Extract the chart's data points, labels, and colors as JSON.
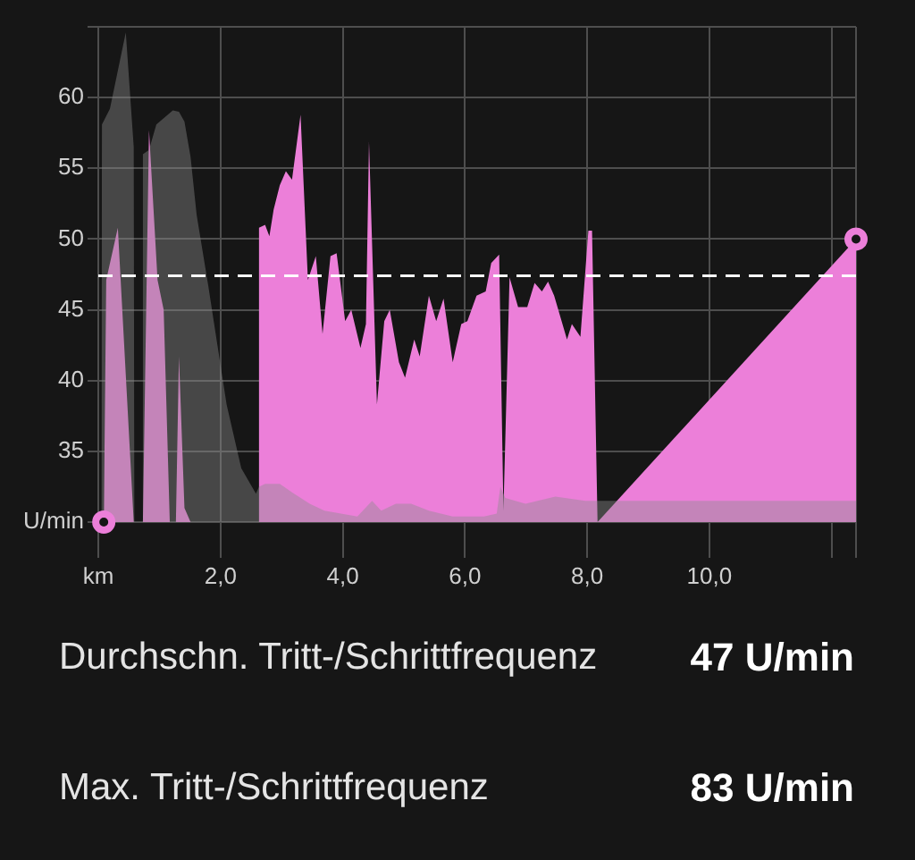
{
  "chart_data": {
    "type": "area",
    "xlim": [
      0,
      12.4
    ],
    "xticks": [
      {
        "value": 0,
        "label": "km"
      },
      {
        "value": 2,
        "label": "2,0"
      },
      {
        "value": 4,
        "label": "4,0"
      },
      {
        "value": 6,
        "label": "6,0"
      },
      {
        "value": 8,
        "label": "8,0"
      },
      {
        "value": 10,
        "label": "10,0"
      },
      {
        "value": 12,
        "label": null
      },
      {
        "value": 12.4,
        "label": null
      }
    ],
    "ylim": [
      30,
      65
    ],
    "yticks": [
      {
        "value": 30,
        "label": "U/min"
      },
      35,
      40,
      45,
      50,
      55,
      60,
      {
        "value": 65,
        "label": null
      }
    ],
    "grid": true,
    "series": [
      {
        "color": "#ec7fd9",
        "x": [
          0.09,
          0.13,
          0.32,
          0.58,
          0.73,
          0.83,
          0.97,
          1.07,
          1.17,
          1.27,
          1.32,
          1.41,
          1.51,
          2.62,
          2.63,
          2.73,
          2.8,
          2.87,
          2.97,
          3.07,
          3.17,
          3.31,
          3.43,
          3.56,
          3.67,
          3.8,
          3.9,
          4.04,
          4.14,
          4.29,
          4.38,
          4.43,
          4.56,
          4.68,
          4.77,
          4.92,
          5.02,
          5.17,
          5.26,
          5.41,
          5.53,
          5.65,
          5.8,
          5.94,
          6.04,
          6.19,
          6.34,
          6.43,
          6.56,
          6.63,
          6.73,
          6.87,
          7.02,
          7.14,
          7.26,
          7.36,
          7.46,
          7.67,
          7.75,
          7.89,
          8.02,
          8.08,
          8.17,
          12.4
        ],
        "values": [
          30,
          47.1,
          50.8,
          30,
          30,
          57.7,
          47.1,
          45,
          30,
          30,
          41.7,
          31,
          30,
          30,
          50.8,
          51,
          50.2,
          52.1,
          53.8,
          54.8,
          54.2,
          58.8,
          47.1,
          48.8,
          43.3,
          48.8,
          49,
          44.2,
          45,
          42.3,
          44,
          56.9,
          38.3,
          44.2,
          45,
          41.3,
          40.2,
          42.9,
          41.7,
          46,
          44.2,
          45.8,
          41.3,
          44,
          44.2,
          46,
          46.3,
          48.3,
          48.9,
          30.8,
          47.3,
          45.2,
          45.2,
          46.9,
          46.3,
          47,
          46,
          42.9,
          44,
          43.1,
          50.6,
          50.6,
          30,
          50
        ]
      },
      {
        "color": "#8c8c8c",
        "x": [
          0.05,
          0.06,
          0.19,
          0.45,
          0.58,
          0.59,
          0.72,
          0.73,
          0.83,
          0.95,
          1.22,
          1.32,
          1.41,
          1.51,
          1.61,
          1.8,
          1.95,
          2.1,
          2.34,
          2.58,
          2.63,
          2.73,
          2.97,
          3.17,
          3.46,
          3.7,
          4.24,
          4.48,
          4.63,
          4.87,
          5.12,
          5.41,
          5.8,
          6.31,
          6.52,
          6.58,
          6.66,
          6.99,
          7.48,
          7.97,
          12.4
        ],
        "values": [
          30,
          58.1,
          59.2,
          64.6,
          56.5,
          30,
          30,
          56,
          56.3,
          58.1,
          59.1,
          59,
          58.3,
          55.8,
          51.7,
          46.7,
          42.5,
          38.3,
          33.8,
          32,
          32.5,
          32.7,
          32.7,
          32.1,
          31.3,
          30.8,
          30.4,
          31.5,
          30.8,
          31.3,
          31.3,
          30.8,
          30.4,
          30.4,
          30.6,
          32.5,
          31.7,
          31.3,
          31.8,
          31.5,
          31.5
        ]
      },
      {
        "type": "scatter",
        "color": "#ec7fd9",
        "marker": "circle",
        "x": [
          0.09,
          12.4
        ],
        "values": [
          30,
          50
        ]
      }
    ],
    "ref_lines": [
      {
        "axis": "y",
        "value": 47.4,
        "color": "#ffffff",
        "line_style": "dashed"
      }
    ],
    "annotations": [
      "Durchschn. Tritt-/Schrittfrequenz",
      "47 U/min",
      "Max. Tritt-/Schrittfrequenz",
      "83 U/min"
    ]
  }
}
